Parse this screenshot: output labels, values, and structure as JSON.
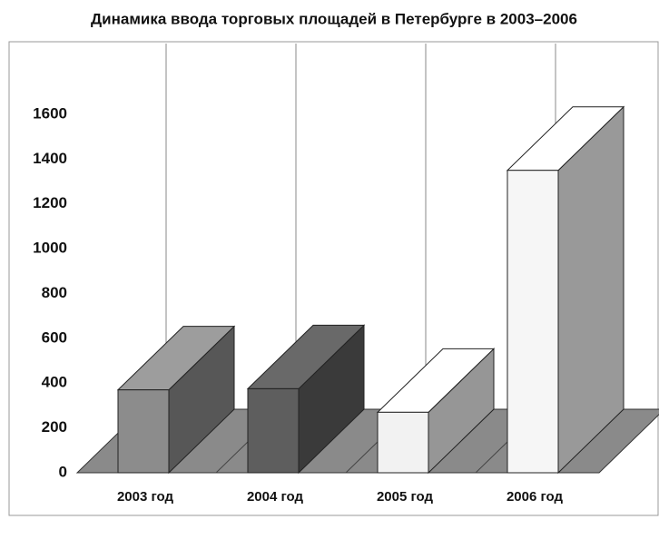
{
  "chart_data": {
    "type": "bar3d",
    "title": "Динамика ввода торговых площадей в Петербурге в 2003–2006",
    "categories": [
      "2003 год",
      "2004 год",
      "2005 год",
      "2006 год"
    ],
    "values": [
      370,
      375,
      270,
      1350
    ],
    "colors": [
      "#8c8c8c",
      "#5e5e5e",
      "#f2f2f2",
      "#f6f6f6"
    ],
    "ylim": [
      0,
      1600
    ],
    "yticks": [
      0,
      200,
      400,
      600,
      800,
      1000,
      1200,
      1400,
      1600
    ]
  }
}
